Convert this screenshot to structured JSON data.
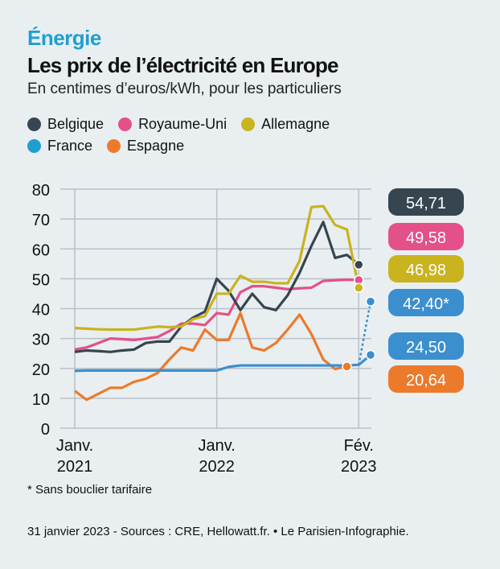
{
  "header": {
    "kicker": "Énergie",
    "title": "Les prix de l’électricité en Europe",
    "subtitle": "En centimes d’euros/kWh, pour les particuliers"
  },
  "chart_data": {
    "type": "line",
    "title": "Les prix de l’électricité en Europe",
    "ylabel": "En centimes d’euros/kWh",
    "ylim": [
      0,
      80
    ],
    "yticks": [
      0,
      10,
      20,
      30,
      40,
      50,
      60,
      70,
      80
    ],
    "xlim_months": [
      0,
      25
    ],
    "xticks": [
      {
        "month": 0,
        "l1": "Janv.",
        "l2": "2021"
      },
      {
        "month": 12,
        "l1": "Janv.",
        "l2": "2022"
      },
      {
        "month": 24,
        "l1": "Fév.",
        "l2": "2023"
      }
    ],
    "grid": true,
    "legend_position": "top-left",
    "series": [
      {
        "name": "Belgique",
        "color": "#36454f",
        "values": [
          25.5,
          26,
          25.8,
          25.5,
          26,
          26.3,
          28.5,
          29,
          29,
          34,
          37,
          39,
          50,
          46,
          39.5,
          45,
          40.5,
          39.5,
          44.5,
          52,
          61,
          69,
          57,
          58,
          54.71
        ],
        "end_label": "54,71"
      },
      {
        "name": "Royaume-Uni",
        "color": "#e3508a",
        "values": [
          26.3,
          27,
          28.5,
          30,
          29.8,
          29.5,
          30,
          30.5,
          32.5,
          35,
          35,
          34.5,
          38.5,
          38,
          45.5,
          47.5,
          47.5,
          47,
          46.5,
          46.8,
          47,
          49.3,
          49.5,
          49.7,
          49.58
        ],
        "end_label": "49,58"
      },
      {
        "name": "Allemagne",
        "color": "#c9b31e",
        "values": [
          33.5,
          33.3,
          33.1,
          33,
          33,
          33,
          33.5,
          34,
          33.8,
          34,
          36.5,
          37.5,
          45,
          45,
          51,
          49,
          49,
          48.5,
          48.5,
          56,
          74,
          74.3,
          68,
          66.5,
          46.98
        ],
        "end_label": "46,98"
      },
      {
        "name": "France",
        "color": "#3b8fcf",
        "values": [
          19.2,
          19.3,
          19.3,
          19.3,
          19.3,
          19.3,
          19.3,
          19.3,
          19.3,
          19.3,
          19.3,
          19.3,
          19.3,
          20.5,
          21,
          21,
          21,
          21,
          21,
          21,
          21,
          21,
          21,
          21,
          21.2,
          24.5
        ],
        "end_label": "24,50",
        "alt_value": 42.4,
        "alt_label": "42,40*"
      },
      {
        "name": "Espagne",
        "color": "#ec7a2b",
        "values": [
          12.5,
          9.5,
          11.5,
          13.5,
          13.5,
          15.5,
          16.5,
          18.5,
          23,
          27,
          26,
          33,
          29.5,
          29.5,
          38.5,
          27,
          26,
          28.5,
          33,
          38,
          31.5,
          23,
          19.8,
          20.64
        ],
        "end_label": "20,64"
      }
    ]
  },
  "footnote": "* Sans bouclier tarifaire",
  "source": "31 janvier 2023 - Sources : CRE, Hellowatt.fr. • Le Parisien-Infographie."
}
